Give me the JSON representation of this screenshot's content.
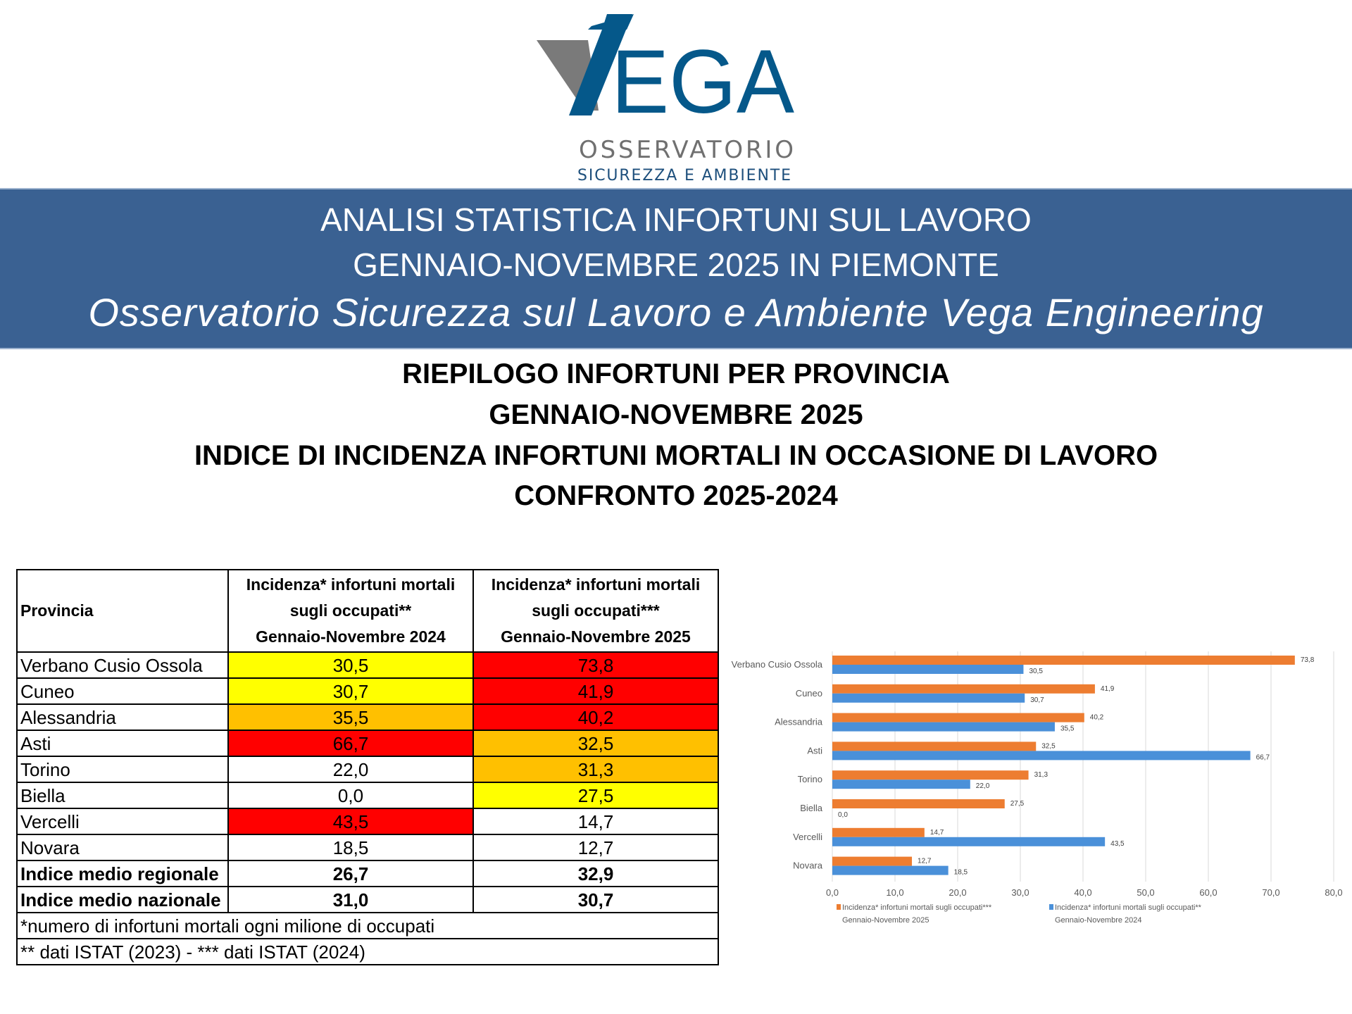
{
  "logo": {
    "brand": "EGA",
    "line1": "OSSERVATORIO",
    "line2": "SICUREZZA E AMBIENTE"
  },
  "banner": {
    "line1": "ANALISI STATISTICA INFORTUNI SUL LAVORO",
    "line2": "GENNAIO-NOVEMBRE 2025 IN PIEMONTE",
    "line3": "Osservatorio Sicurezza sul Lavoro e Ambiente Vega Engineering"
  },
  "titles": [
    "RIEPILOGO INFORTUNI PER PROVINCIA",
    "GENNAIO-NOVEMBRE 2025",
    "INDICE DI INCIDENZA INFORTUNI MORTALI IN OCCASIONE DI LAVORO",
    "CONFRONTO 2025-2024"
  ],
  "table": {
    "headers": {
      "provincia": "Provincia",
      "col2024": [
        "Incidenza* infortuni mortali",
        "sugli occupati**",
        "Gennaio-Novembre 2024"
      ],
      "col2025": [
        "Incidenza* infortuni mortali",
        "sugli occupati***",
        "Gennaio-Novembre 2025"
      ]
    },
    "rows": [
      {
        "name": "Verbano Cusio Ossola",
        "v2024": "30,5",
        "v2025": "73,8",
        "c2024": "#ffff00",
        "c2025": "#ff0000"
      },
      {
        "name": "Cuneo",
        "v2024": "30,7",
        "v2025": "41,9",
        "c2024": "#ffff00",
        "c2025": "#ff0000"
      },
      {
        "name": "Alessandria",
        "v2024": "35,5",
        "v2025": "40,2",
        "c2024": "#ffc000",
        "c2025": "#ff0000"
      },
      {
        "name": "Asti",
        "v2024": "66,7",
        "v2025": "32,5",
        "c2024": "#ff0000",
        "c2025": "#ffc000"
      },
      {
        "name": "Torino",
        "v2024": "22,0",
        "v2025": "31,3",
        "c2024": "#ffffff",
        "c2025": "#ffc000"
      },
      {
        "name": "Biella",
        "v2024": "0,0",
        "v2025": "27,5",
        "c2024": "#ffffff",
        "c2025": "#ffff00"
      },
      {
        "name": "Vercelli",
        "v2024": "43,5",
        "v2025": "14,7",
        "c2024": "#ff0000",
        "c2025": "#ffffff"
      },
      {
        "name": "Novara",
        "v2024": "18,5",
        "v2025": "12,7",
        "c2024": "#ffffff",
        "c2025": "#ffffff"
      }
    ],
    "summary": [
      {
        "name": "Indice medio regionale",
        "v2024": "26,7",
        "v2025": "32,9"
      },
      {
        "name": "Indice medio nazionale",
        "v2024": "31,0",
        "v2025": "30,7"
      }
    ],
    "notes": [
      "*numero di infortuni mortali ogni milione di occupati",
      "** dati ISTAT (2023) - *** dati ISTAT (2024)"
    ]
  },
  "chart_data": {
    "type": "bar",
    "orientation": "horizontal",
    "categories": [
      "Verbano Cusio Ossola",
      "Cuneo",
      "Alessandria",
      "Asti",
      "Torino",
      "Biella",
      "Vercelli",
      "Novara"
    ],
    "series": [
      {
        "name": "Incidenza* infortuni mortali  sugli occupati*** Gennaio-Novembre 2025",
        "legend": [
          "Incidenza* infortuni mortali  sugli occupati***",
          "Gennaio-Novembre 2025"
        ],
        "color": "#ed7d31",
        "values": [
          73.8,
          41.9,
          40.2,
          32.5,
          31.3,
          27.5,
          14.7,
          12.7
        ]
      },
      {
        "name": "Incidenza* infortuni mortali  sugli occupati** Gennaio-Novembre 2024",
        "legend": [
          "Incidenza* infortuni mortali  sugli occupati**",
          "Gennaio-Novembre 2024"
        ],
        "color": "#4a90d9",
        "values": [
          30.5,
          30.7,
          35.5,
          66.7,
          22.0,
          0.0,
          43.5,
          18.5
        ]
      }
    ],
    "xlim": [
      0,
      80
    ],
    "xticks": [
      "0,0",
      "10,0",
      "20,0",
      "30,0",
      "40,0",
      "50,0",
      "60,0",
      "70,0",
      "80,0"
    ],
    "grid": true,
    "legend_position": "bottom"
  }
}
